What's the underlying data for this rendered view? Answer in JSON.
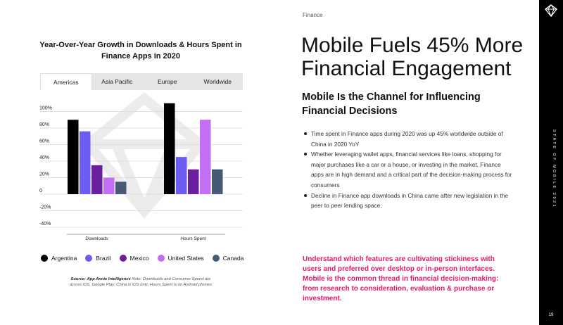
{
  "chart_title": "Year-Over-Year Growth in Downloads & Hours Spent in Finance Apps in 2020",
  "tabs": [
    "Americas",
    "Asia Pacific",
    "Europe",
    "Worldwide"
  ],
  "active_tab": "Americas",
  "chart_data": {
    "type": "bar",
    "categories": [
      "Downloads",
      "Hours Spent"
    ],
    "series": [
      {
        "name": "Argentina",
        "color": "#000000",
        "values": [
          90,
          110
        ]
      },
      {
        "name": "Brazil",
        "color": "#6c5cf2",
        "values": [
          76,
          45
        ]
      },
      {
        "name": "Mexico",
        "color": "#6a1fa0",
        "values": [
          35,
          30
        ]
      },
      {
        "name": "United States",
        "color": "#c26ff5",
        "values": [
          20,
          90
        ]
      },
      {
        "name": "Canada",
        "color": "#475a75",
        "values": [
          15,
          30
        ]
      }
    ],
    "y_ticks": [
      "100%",
      "80%",
      "60%",
      "40%",
      "20%",
      "0",
      "-20%",
      "-40%"
    ],
    "ylim": [
      -40,
      100
    ],
    "grid": true,
    "legend": "bottom"
  },
  "source": {
    "label": "Source: App Annie Intelligence",
    "text": "Note: Downloads and Consumer Spend are across iOS, Google Play; China is iOS only; Hours Spent is on Android phones"
  },
  "section_label": "Finance",
  "headline": "Mobile Fuels 45% More Financial Engagement",
  "subheadline": "Mobile Is the Channel for Influencing Financial Decisions",
  "bullets": [
    "Time spent in Finance apps during 2020 was up 45% worldwide outside of China in 2020 YoY",
    "Whether leveraging wallet apps, financial services like loans, shopping for major purchases like a car or a house, or investing in the market, Finance apps are in high demand and a critical part of the decision-making process for consumers",
    "Decline in Finance app downloads in China came after new legislation in the peer to peer lending space."
  ],
  "callout": "Understand which features are cultivating stickiness with users and preferred over desktop or in-person interfaces. Mobile is the common thread in financial decision-making: from research to consideration, evaluation & purchase or investment.",
  "sidebar_text": "STATE OF MOBILE 2021",
  "page_number": "19",
  "brand_color": "#e6186d"
}
